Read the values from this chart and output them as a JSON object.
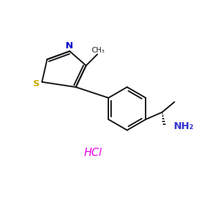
{
  "bg_color": "#ffffff",
  "bond_color": "#1a1a1a",
  "bond_lw": 1.5,
  "S_color": "#ccaa00",
  "N_color": "#0000cc",
  "NH2_color": "#3333cc",
  "HCl_color": "#ee00ee",
  "figsize": [
    3.0,
    3.0
  ],
  "dpi": 100,
  "xlim": [
    0,
    10
  ],
  "ylim": [
    0,
    10
  ]
}
